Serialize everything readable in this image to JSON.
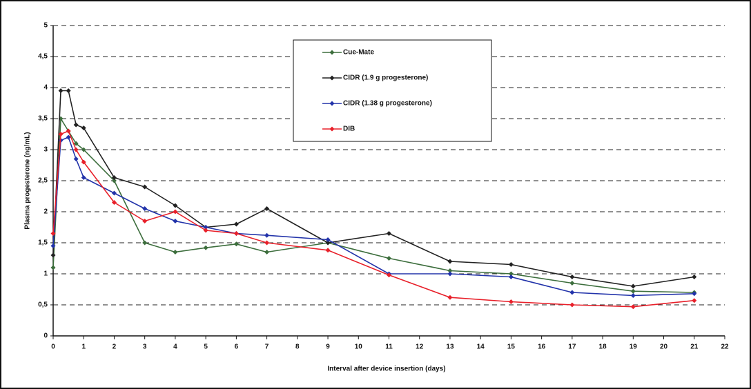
{
  "chart_data": {
    "type": "line",
    "x_label": "Interval after device insertion (days)",
    "y_label": "Plasma progesterone (ng/mL)",
    "x": [
      0,
      0.25,
      0.5,
      0.75,
      1,
      2,
      3,
      4,
      5,
      6,
      7,
      9,
      11,
      13,
      15,
      17,
      19,
      21
    ],
    "series": [
      {
        "name": "Cue-Mate",
        "color": "#3d6e3d",
        "values": [
          1.1,
          3.5,
          3.3,
          3.1,
          3.0,
          2.5,
          1.5,
          1.35,
          1.42,
          1.48,
          1.35,
          1.5,
          1.25,
          1.05,
          1.0,
          0.85,
          0.72,
          0.7
        ]
      },
      {
        "name": "CIDR (1.9 g progesterone)",
        "color": "#222222",
        "values": [
          1.3,
          3.95,
          3.95,
          3.4,
          3.35,
          2.55,
          2.4,
          2.1,
          1.75,
          1.8,
          2.05,
          1.5,
          1.65,
          1.2,
          1.15,
          0.95,
          0.8,
          0.95
        ]
      },
      {
        "name": "CIDR (1.38 g progesterone)",
        "color": "#2233aa",
        "values": [
          1.45,
          3.15,
          3.2,
          2.85,
          2.55,
          2.3,
          2.05,
          1.85,
          1.75,
          1.65,
          1.62,
          1.55,
          1.0,
          1.0,
          0.95,
          0.7,
          0.65,
          0.68
        ]
      },
      {
        "name": "DIB",
        "color": "#e8202a",
        "values": [
          1.65,
          3.25,
          3.3,
          3.0,
          2.8,
          2.15,
          1.85,
          2.0,
          1.7,
          1.65,
          1.5,
          1.38,
          0.98,
          0.62,
          0.55,
          0.5,
          0.47,
          0.57
        ]
      }
    ],
    "xlim": [
      0,
      22
    ],
    "xticks": [
      0,
      1,
      2,
      3,
      4,
      5,
      6,
      7,
      8,
      9,
      10,
      11,
      12,
      13,
      14,
      15,
      16,
      17,
      18,
      19,
      20,
      21,
      22
    ],
    "ylim": [
      0,
      5
    ],
    "yticks": [
      0,
      {
        "value": 0.5,
        "label": "0,5"
      },
      1,
      {
        "value": 1.5,
        "label": "1,5"
      },
      2,
      {
        "value": 2.5,
        "label": "2,5"
      },
      3,
      {
        "value": 3.5,
        "label": "3,5"
      },
      4,
      {
        "value": 4.5,
        "label": "4,5"
      },
      5
    ],
    "grid": true
  }
}
